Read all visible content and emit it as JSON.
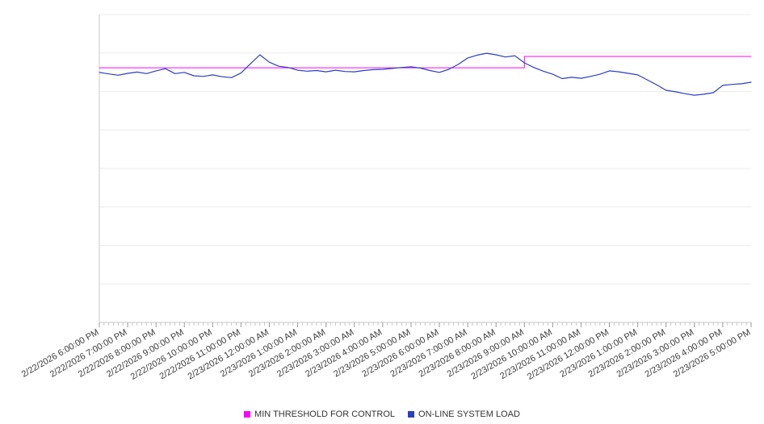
{
  "chart_data": {
    "type": "line",
    "title": "",
    "xlabel": "",
    "ylabel": "",
    "grid_on": true,
    "grid_divisions": 8,
    "ylim": [
      0,
      100
    ],
    "x_hours_range": [
      0,
      23
    ],
    "legend_position": "bottom",
    "x_tick_labels": [
      "2/22/2026 6:00:00 PM",
      "2/22/2026 7:00:00 PM",
      "2/22/2026 8:00:00 PM",
      "2/22/2026 9:00:00 PM",
      "2/22/2026 10:00:00 PM",
      "2/22/2026 11:00:00 PM",
      "2/23/2026 12:00:00 AM",
      "2/23/2026 1:00:00 AM",
      "2/23/2026 2:00:00 AM",
      "2/23/2026 3:00:00 AM",
      "2/23/2026 4:00:00 AM",
      "2/23/2026 5:00:00 AM",
      "2/23/2026 6:00:00 AM",
      "2/23/2026 7:00:00 AM",
      "2/23/2026 8:00:00 AM",
      "2/23/2026 9:00:00 AM",
      "2/23/2026 10:00:00 AM",
      "2/23/2026 11:00:00 AM",
      "2/23/2026 12:00:00 PM",
      "2/23/2026 1:00:00 PM",
      "2/23/2026 2:00:00 PM",
      "2/23/2026 3:00:00 PM",
      "2/23/2026 4:00:00 PM",
      "2/23/2026 5:00:00 PM"
    ],
    "series": [
      {
        "name": "MIN THRESHOLD FOR CONTROL",
        "color": "#ff00ff",
        "width": 1,
        "points": [
          [
            0,
            82.7
          ],
          [
            15,
            82.7
          ],
          [
            15,
            86.4
          ],
          [
            23,
            86.4
          ]
        ]
      },
      {
        "name": "ON-LINE SYSTEM LOAD",
        "color": "#2a3fbf",
        "width": 1.2,
        "x_step_hours": 0.33333333,
        "values": [
          81.2,
          80.7,
          80.3,
          80.9,
          81.3,
          80.8,
          81.7,
          82.4,
          80.8,
          81.2,
          80.1,
          79.9,
          80.4,
          79.8,
          79.5,
          81.0,
          84.0,
          86.9,
          84.5,
          83.2,
          82.8,
          81.9,
          81.6,
          81.8,
          81.4,
          81.9,
          81.5,
          81.4,
          81.8,
          82.1,
          82.2,
          82.5,
          82.8,
          83.0,
          82.6,
          81.8,
          81.2,
          82.2,
          83.8,
          85.9,
          86.8,
          87.4,
          86.9,
          86.2,
          86.6,
          84.3,
          82.8,
          81.6,
          80.6,
          79.2,
          79.6,
          79.3,
          79.9,
          80.6,
          81.7,
          81.4,
          80.9,
          80.4,
          78.8,
          77.2,
          75.4,
          74.9,
          74.3,
          73.8,
          74.1,
          74.6,
          77.0,
          77.3,
          77.5,
          78.0
        ]
      }
    ],
    "colors": {
      "grid": "#ebebeb",
      "axis": "#c8c8c8",
      "minor_tick": "#b5b5b5",
      "major_tick": "#999999",
      "label_text": "#3c3c3c"
    }
  }
}
